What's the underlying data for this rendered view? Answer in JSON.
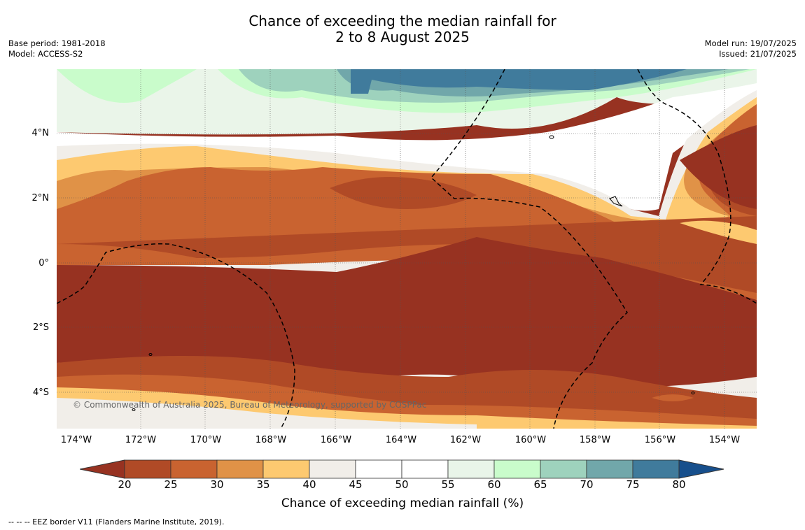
{
  "title": {
    "line1": "Chance of exceeding the median rainfall for",
    "line2": "2 to 8 August 2025"
  },
  "meta_left": {
    "base_period": "Base period: 1981-2018",
    "model": "Model: ACCESS-S2"
  },
  "meta_right": {
    "model_run": "Model run: 19/07/2025",
    "issued": "Issued: 21/07/2025"
  },
  "map": {
    "lat_labels": [
      "4°N",
      "2°N",
      "0°",
      "2°S",
      "4°S"
    ],
    "lon_labels": [
      "174°W",
      "172°W",
      "170°W",
      "168°W",
      "166°W",
      "164°W",
      "162°W",
      "160°W",
      "158°W",
      "156°W",
      "154°W"
    ],
    "copyright": "© Commonwealth of Australia 2025, Bureau of Meteorology, supported by COSPPac"
  },
  "colorbar": {
    "ticks": [
      "20",
      "25",
      "30",
      "35",
      "40",
      "45",
      "50",
      "55",
      "60",
      "65",
      "70",
      "75",
      "80"
    ],
    "colors": [
      "#973221",
      "#b04a26",
      "#c96330",
      "#e09247",
      "#fdc970",
      "#f1eee9",
      "#ffffff",
      "#ffffff",
      "#e9f5e9",
      "#c9fccb",
      "#9ed2bd",
      "#71a7aa",
      "#407b9c",
      "#174f8c"
    ],
    "title": "Chance of exceeding median rainfall (%)"
  },
  "legend_note": "--  --  -- EEZ border V11 (Flanders Marine Institute, 2019)."
}
